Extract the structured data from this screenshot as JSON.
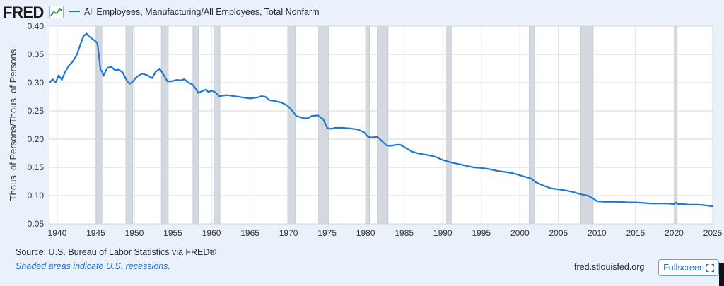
{
  "header": {
    "logo_text": "FRED",
    "legend_label": "All Employees, Manufacturing/All Employees, Total Nonfarm"
  },
  "footer": {
    "source": "Source: U.S. Bureau of Labor Statistics via FRED®",
    "recession_note": "Shaded areas indicate U.S. recessions.",
    "site": "fred.stlouisfed.org",
    "fullscreen_label": "Fullscreen"
  },
  "colors": {
    "line": "#1f77d4",
    "recession": "#d4d9e0",
    "grid": "#d3d7dc",
    "plot_bg": "#ffffff",
    "page_bg": "#eaf1fb"
  },
  "chart_data": {
    "type": "line",
    "title": "",
    "xlabel": "",
    "ylabel": "Thous. of Persons/Thous. of Persons",
    "xlim": [
      1939,
      2025
    ],
    "ylim": [
      0.05,
      0.4
    ],
    "grid": true,
    "legend_position": "top-left",
    "x_ticks": [
      1940,
      1945,
      1950,
      1955,
      1960,
      1965,
      1970,
      1975,
      1980,
      1985,
      1990,
      1995,
      2000,
      2005,
      2010,
      2015,
      2020,
      2025
    ],
    "y_ticks": [
      0.05,
      0.1,
      0.15,
      0.2,
      0.25,
      0.3,
      0.35,
      0.4
    ],
    "y_tick_labels": [
      "0.05",
      "0.10",
      "0.15",
      "0.20",
      "0.25",
      "0.30",
      "0.35",
      "0.40"
    ],
    "recessions": [
      [
        1945.1,
        1945.8
      ],
      [
        1948.9,
        1949.8
      ],
      [
        1953.5,
        1954.4
      ],
      [
        1957.6,
        1958.3
      ],
      [
        1960.3,
        1961.1
      ],
      [
        1969.9,
        1970.9
      ],
      [
        1973.9,
        1975.2
      ],
      [
        1980.0,
        1980.5
      ],
      [
        1981.5,
        1982.9
      ],
      [
        1990.5,
        1991.2
      ],
      [
        2001.2,
        2001.9
      ],
      [
        2007.9,
        2009.5
      ],
      [
        2020.1,
        2020.4
      ]
    ],
    "series": [
      {
        "name": "All Employees, Manufacturing/All Employees, Total Nonfarm",
        "x": [
          1939.0,
          1939.4,
          1939.8,
          1940.2,
          1940.6,
          1941.0,
          1941.5,
          1942.0,
          1942.5,
          1943.0,
          1943.4,
          1943.8,
          1944.1,
          1944.5,
          1944.9,
          1945.2,
          1945.4,
          1945.6,
          1945.8,
          1946.0,
          1946.5,
          1947.0,
          1947.5,
          1948.0,
          1948.5,
          1949.0,
          1949.4,
          1949.8,
          1950.3,
          1951.0,
          1951.7,
          1952.3,
          1952.8,
          1953.3,
          1953.8,
          1954.3,
          1955.0,
          1955.5,
          1956.0,
          1956.5,
          1957.0,
          1957.5,
          1958.0,
          1958.3,
          1958.8,
          1959.3,
          1959.6,
          1960.0,
          1960.5,
          1961.0,
          1962.0,
          1963.0,
          1964.0,
          1965.0,
          1966.0,
          1966.5,
          1967.0,
          1967.5,
          1968.0,
          1969.0,
          1969.8,
          1970.5,
          1971.0,
          1972.0,
          1972.5,
          1973.0,
          1973.8,
          1974.5,
          1975.0,
          1975.5,
          1976.0,
          1977.0,
          1978.0,
          1979.0,
          1979.8,
          1980.3,
          1980.8,
          1981.5,
          1982.0,
          1982.7,
          1983.2,
          1984.0,
          1984.5,
          1985.0,
          1986.0,
          1987.0,
          1988.0,
          1989.0,
          1990.0,
          1991.0,
          1992.0,
          1993.0,
          1994.0,
          1995.0,
          1996.0,
          1997.0,
          1998.0,
          1999.0,
          2000.0,
          2001.0,
          2001.5,
          2002.0,
          2003.0,
          2004.0,
          2005.0,
          2006.0,
          2007.0,
          2008.0,
          2008.8,
          2009.5,
          2010.0,
          2011.0,
          2012.0,
          2013.0,
          2014.0,
          2015.0,
          2016.0,
          2017.0,
          2018.0,
          2019.0,
          2020.0,
          2020.2,
          2020.5,
          2021.0,
          2022.0,
          2023.0,
          2024.0,
          2025.0
        ],
        "y": [
          0.3,
          0.306,
          0.3,
          0.313,
          0.305,
          0.318,
          0.33,
          0.337,
          0.348,
          0.367,
          0.382,
          0.387,
          0.382,
          0.378,
          0.374,
          0.37,
          0.35,
          0.323,
          0.32,
          0.312,
          0.326,
          0.328,
          0.322,
          0.323,
          0.318,
          0.304,
          0.298,
          0.302,
          0.31,
          0.316,
          0.313,
          0.308,
          0.32,
          0.324,
          0.314,
          0.302,
          0.303,
          0.305,
          0.304,
          0.306,
          0.3,
          0.297,
          0.289,
          0.282,
          0.285,
          0.288,
          0.283,
          0.286,
          0.283,
          0.276,
          0.278,
          0.276,
          0.274,
          0.272,
          0.274,
          0.276,
          0.275,
          0.269,
          0.268,
          0.265,
          0.26,
          0.25,
          0.241,
          0.237,
          0.237,
          0.241,
          0.242,
          0.235,
          0.22,
          0.218,
          0.22,
          0.22,
          0.219,
          0.217,
          0.212,
          0.204,
          0.203,
          0.204,
          0.198,
          0.189,
          0.188,
          0.19,
          0.19,
          0.186,
          0.178,
          0.174,
          0.172,
          0.169,
          0.163,
          0.159,
          0.156,
          0.153,
          0.15,
          0.149,
          0.147,
          0.144,
          0.142,
          0.14,
          0.136,
          0.132,
          0.13,
          0.124,
          0.118,
          0.113,
          0.111,
          0.109,
          0.106,
          0.102,
          0.1,
          0.095,
          0.09,
          0.089,
          0.089,
          0.089,
          0.088,
          0.088,
          0.087,
          0.086,
          0.086,
          0.086,
          0.085,
          0.088,
          0.085,
          0.085,
          0.084,
          0.084,
          0.083,
          0.081
        ]
      }
    ]
  }
}
